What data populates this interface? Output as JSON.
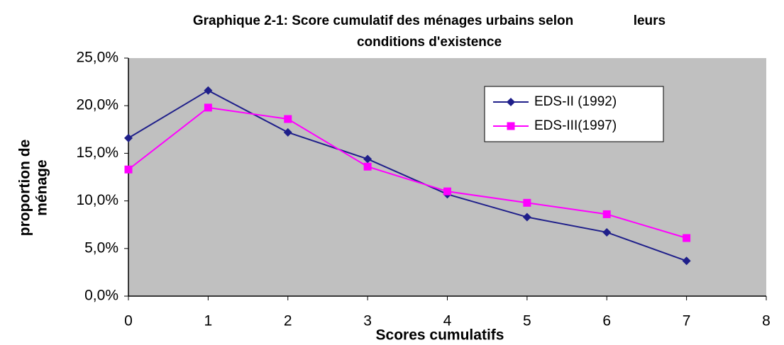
{
  "chart_data": {
    "type": "line",
    "title": [
      "Graphique 2-1: Score cumulatif des ménages urbains selon                leurs",
      "conditions d'existence"
    ],
    "xlabel": "Scores cumulatifs",
    "ylabel": [
      "proportion de",
      "ménage"
    ],
    "x": [
      0,
      1,
      2,
      3,
      4,
      5,
      6,
      7
    ],
    "series": [
      {
        "name": "EDS-II (1992)",
        "color": "#1f1f8a",
        "marker": "diamond",
        "values": [
          16.6,
          21.6,
          17.2,
          14.4,
          10.7,
          8.3,
          6.7,
          3.7
        ]
      },
      {
        "name": "EDS-III(1997)",
        "color": "#ff00ff",
        "marker": "square",
        "values": [
          13.3,
          19.8,
          18.6,
          13.6,
          11.0,
          9.8,
          8.6,
          6.1
        ]
      }
    ],
    "xlim": [
      0,
      8
    ],
    "xticks": [
      0,
      1,
      2,
      3,
      4,
      5,
      6,
      7,
      8
    ],
    "ylim": [
      0,
      25
    ],
    "yticks": [
      {
        "value": 0,
        "label": "0,0%"
      },
      {
        "value": 5,
        "label": "5,0%"
      },
      {
        "value": 10,
        "label": "10,0%"
      },
      {
        "value": 15,
        "label": "15,0%"
      },
      {
        "value": 20,
        "label": "20,0%"
      },
      {
        "value": 25,
        "label": "25,0%"
      }
    ],
    "grid": false,
    "legend": "upper right"
  }
}
